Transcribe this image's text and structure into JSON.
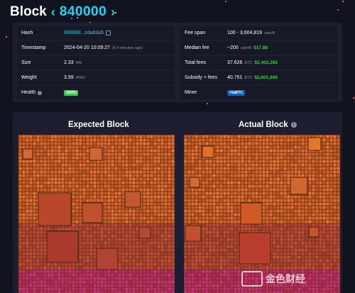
{
  "header": {
    "title": "Block",
    "prev_chevron": "‹",
    "height": "840000",
    "next_chevron": "›"
  },
  "details": {
    "left": [
      {
        "label": "Hash",
        "value": "000000...cda83a5"
      },
      {
        "label": "Timestamp",
        "value": "2024-04-20 10:09:27",
        "note": "(5.4 minutes ago)"
      },
      {
        "label": "Size",
        "value": "2.33",
        "unit": "MB"
      },
      {
        "label": "Weight",
        "value": "3.99",
        "unit": "MWU"
      },
      {
        "label": "Health",
        "value": "100%"
      }
    ],
    "right": [
      {
        "label": "Fee span",
        "value": "100 - 3,604,819",
        "unit": "sat/vB"
      },
      {
        "label": "Median fee",
        "value": "~200",
        "unit": "sat/vB",
        "usd": "$17.88"
      },
      {
        "label": "Total fees",
        "value": "37.626",
        "unit": "BTC",
        "usd": "$2,402,283"
      },
      {
        "label": "Subsidy + fees",
        "value": "40.751",
        "unit": "BTC",
        "usd": "$2,601,805"
      },
      {
        "label": "Miner",
        "value": "ViaBTC"
      }
    ]
  },
  "blocks": {
    "expected_title": "Expected Block",
    "actual_title": "Actual Block"
  },
  "colors": {
    "accent": "#1bd8f4",
    "fee_green": "#3bcc49",
    "miner_badge": "#105fb0",
    "panel": "#1d1f31",
    "background": "#11131f"
  },
  "watermark": "金色财经"
}
